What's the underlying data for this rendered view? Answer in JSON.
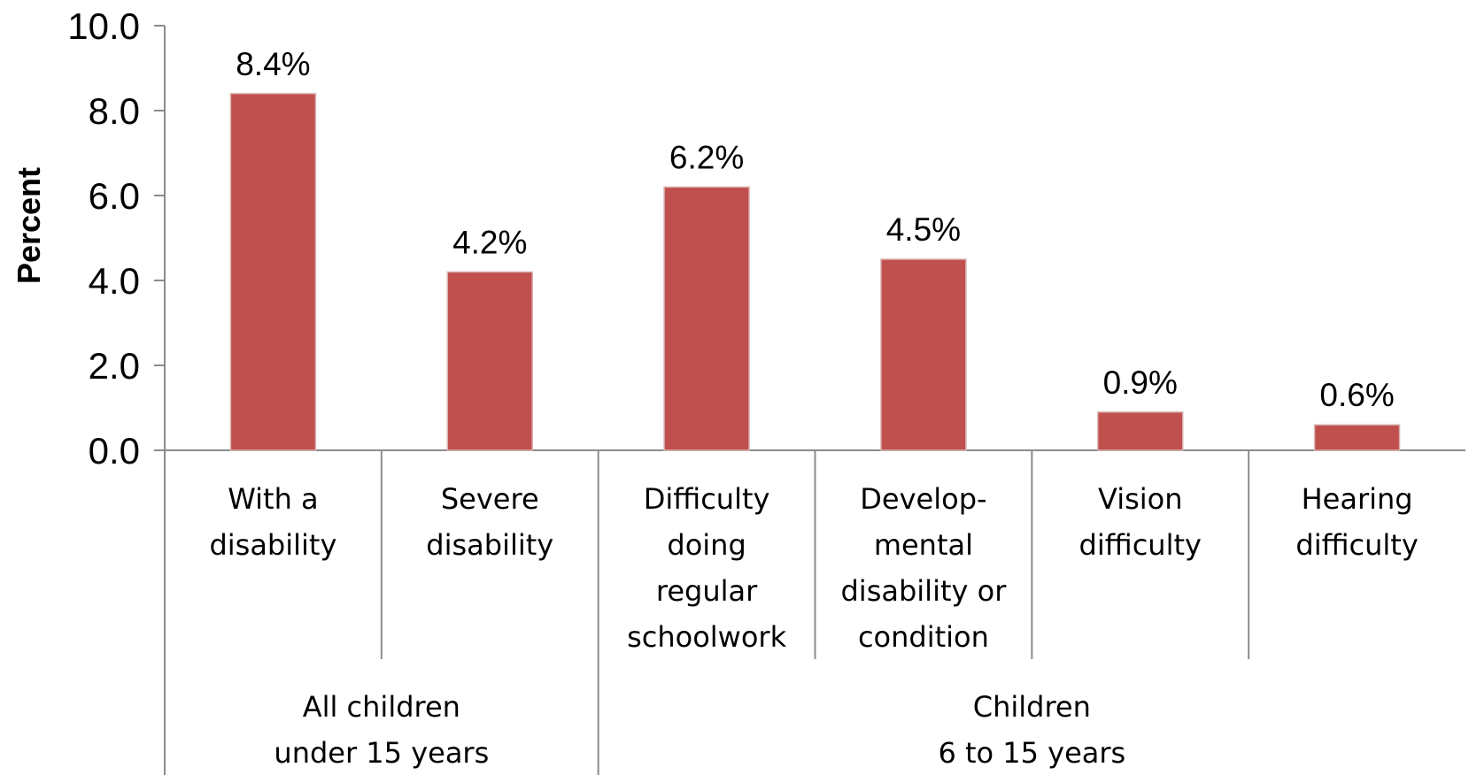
{
  "chart_data": {
    "type": "bar",
    "ylabel": "Percent",
    "ylim": [
      0,
      10
    ],
    "yticks": [
      "0.0",
      "2.0",
      "4.0",
      "6.0",
      "8.0",
      "10.0"
    ],
    "categories": [
      [
        "With a",
        "disability"
      ],
      [
        "Severe",
        "disability"
      ],
      [
        "Difficulty",
        "doing",
        "regular",
        "schoolwork"
      ],
      [
        "Develop-",
        "mental",
        "disability or",
        "condition"
      ],
      [
        "Vision",
        "difficulty"
      ],
      [
        "Hearing",
        "difficulty"
      ]
    ],
    "values": [
      8.4,
      4.2,
      6.2,
      4.5,
      0.9,
      0.6
    ],
    "data_labels": [
      "8.4%",
      "4.2%",
      "6.2%",
      "4.5%",
      "0.9%",
      "0.6%"
    ],
    "groups": [
      {
        "lines": [
          "All children",
          "under 15 years"
        ],
        "span": [
          0,
          1
        ]
      },
      {
        "lines": [
          "Children",
          "6 to 15 years"
        ],
        "span": [
          2,
          5
        ]
      }
    ],
    "bar_color": "#C0504D",
    "grid": false,
    "legend": "none"
  }
}
